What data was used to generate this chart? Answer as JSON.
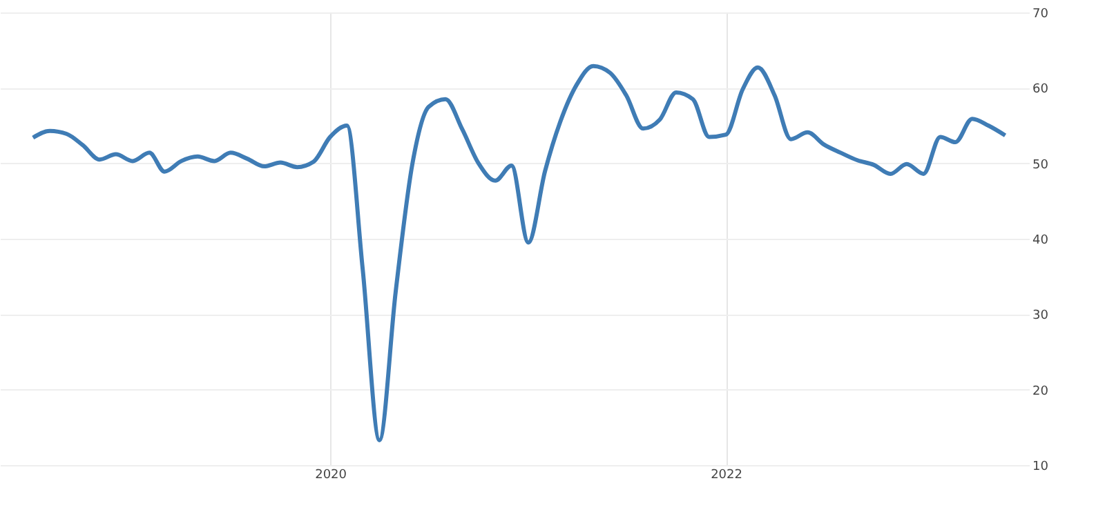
{
  "chart_data": {
    "type": "line",
    "x": [
      "2018-07",
      "2018-08",
      "2018-09",
      "2018-10",
      "2018-11",
      "2018-12",
      "2019-01",
      "2019-02",
      "2019-03",
      "2019-04",
      "2019-05",
      "2019-06",
      "2019-07",
      "2019-08",
      "2019-09",
      "2019-10",
      "2019-11",
      "2019-12",
      "2020-01",
      "2020-02",
      "2020-03",
      "2020-04",
      "2020-05",
      "2020-06",
      "2020-07",
      "2020-08",
      "2020-09",
      "2020-10",
      "2020-11",
      "2020-12",
      "2021-01",
      "2021-02",
      "2021-03",
      "2021-04",
      "2021-05",
      "2021-06",
      "2021-07",
      "2021-08",
      "2021-09",
      "2021-10",
      "2021-11",
      "2021-12",
      "2022-01",
      "2022-02",
      "2022-03",
      "2022-04",
      "2022-05",
      "2022-06",
      "2022-07",
      "2022-08",
      "2022-09",
      "2022-10",
      "2022-11",
      "2022-12",
      "2023-01",
      "2023-02",
      "2023-03",
      "2023-04",
      "2023-05",
      "2023-06"
    ],
    "series": [
      {
        "color": "#3f7cb5",
        "values": [
          53.4,
          54.3,
          53.9,
          52.4,
          50.5,
          51.2,
          50.3,
          51.4,
          48.9,
          50.3,
          50.9,
          50.3,
          51.4,
          50.6,
          49.6,
          50.1,
          49.5,
          50.2,
          53.5,
          55.0,
          36,
          13.3,
          33,
          50,
          57.5,
          58.5,
          54.5,
          50,
          47.7,
          49.7,
          39.5,
          49,
          55.5,
          60.5,
          62.9,
          62,
          59,
          54.6,
          55.8,
          59.4,
          58.5,
          53.5,
          53.8,
          59.8,
          62.7,
          59,
          53.2,
          54.1,
          52.5,
          51.4,
          50.4,
          49.8,
          48.6,
          49.9,
          48.6,
          53.5,
          52.8,
          55.9,
          55,
          53.7
        ]
      }
    ],
    "xlim": [
      "2018-05-01",
      "2023-07-15"
    ],
    "xticks": [
      "2020",
      "2022"
    ],
    "ylim": [
      10,
      70
    ],
    "yticks": [
      10,
      20,
      30,
      40,
      50,
      60,
      70
    ],
    "grid": true,
    "marker": "none",
    "line_style": "solid"
  }
}
